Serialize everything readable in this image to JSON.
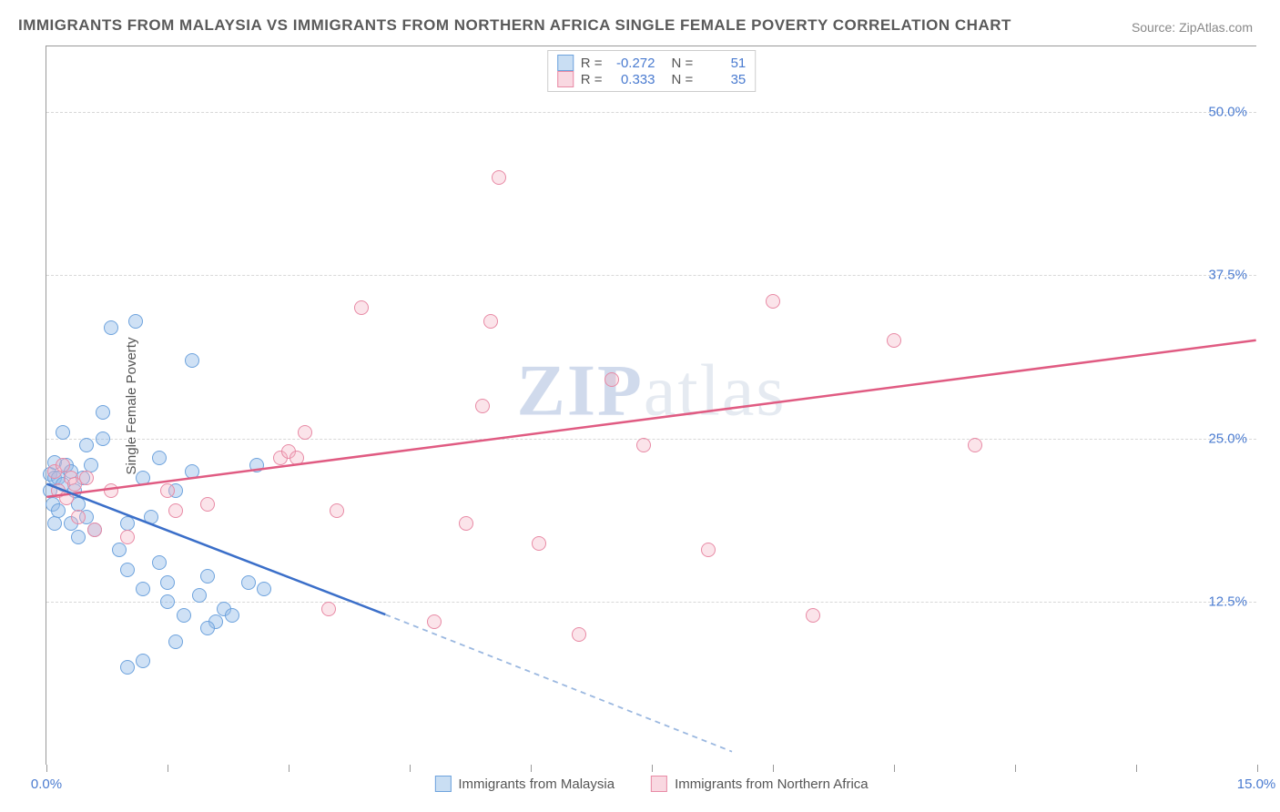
{
  "title": "IMMIGRANTS FROM MALAYSIA VS IMMIGRANTS FROM NORTHERN AFRICA SINGLE FEMALE POVERTY CORRELATION CHART",
  "source_label": "Source: ",
  "source_name": "ZipAtlas.com",
  "ylabel": "Single Female Poverty",
  "watermark_bold": "ZIP",
  "watermark_rest": "atlas",
  "chart": {
    "type": "scatter",
    "xlim": [
      0,
      15
    ],
    "ylim": [
      0,
      55
    ],
    "x_tick_positions": [
      0,
      1.5,
      3.0,
      4.5,
      6.0,
      7.5,
      9.0,
      10.5,
      12.0,
      13.5,
      15.0
    ],
    "x_tick_labels_shown": {
      "0": "0.0%",
      "15": "15.0%"
    },
    "y_gridlines": [
      12.5,
      25.0,
      37.5,
      50.0
    ],
    "y_tick_labels": [
      "12.5%",
      "25.0%",
      "37.5%",
      "50.0%"
    ],
    "background_color": "#ffffff",
    "grid_color": "#d8d8d8",
    "axis_color": "#999999",
    "tick_label_color": "#4a7bd0",
    "title_color": "#5a5a5a",
    "title_fontsize": 17,
    "label_fontsize": 15,
    "point_radius": 8,
    "series": [
      {
        "name": "Immigrants from Malaysia",
        "color_fill": "rgba(148,189,232,0.45)",
        "color_stroke": "#6ea3dd",
        "R": "-0.272",
        "N": "51",
        "trend": {
          "x1": 0,
          "y1": 21.5,
          "x2": 4.2,
          "y2": 11.5,
          "extend_dash_to_x": 8.5,
          "extend_dash_to_y": 1.0,
          "solid_color": "#3b6fc9",
          "dash_color": "#9bb8e0",
          "width": 2.5
        },
        "points": [
          [
            0.05,
            22.3
          ],
          [
            0.05,
            21.0
          ],
          [
            0.08,
            20.0
          ],
          [
            0.1,
            23.2
          ],
          [
            0.1,
            22.0
          ],
          [
            0.1,
            18.5
          ],
          [
            0.15,
            22.0
          ],
          [
            0.15,
            19.5
          ],
          [
            0.2,
            25.5
          ],
          [
            0.2,
            21.5
          ],
          [
            0.25,
            23.0
          ],
          [
            0.3,
            18.5
          ],
          [
            0.3,
            22.5
          ],
          [
            0.35,
            21.0
          ],
          [
            0.4,
            17.5
          ],
          [
            0.45,
            22.0
          ],
          [
            0.5,
            24.5
          ],
          [
            0.5,
            19.0
          ],
          [
            0.55,
            23.0
          ],
          [
            0.6,
            18.0
          ],
          [
            0.7,
            25.0
          ],
          [
            0.8,
            33.5
          ],
          [
            0.9,
            16.5
          ],
          [
            1.0,
            15.0
          ],
          [
            1.0,
            18.5
          ],
          [
            1.1,
            34.0
          ],
          [
            1.2,
            13.5
          ],
          [
            1.2,
            22.0
          ],
          [
            1.3,
            19.0
          ],
          [
            1.4,
            15.5
          ],
          [
            1.4,
            23.5
          ],
          [
            1.5,
            14.0
          ],
          [
            1.5,
            12.5
          ],
          [
            1.6,
            21.0
          ],
          [
            1.7,
            11.5
          ],
          [
            1.8,
            22.5
          ],
          [
            1.8,
            31.0
          ],
          [
            1.9,
            13.0
          ],
          [
            2.0,
            14.5
          ],
          [
            2.1,
            11.0
          ],
          [
            2.2,
            12.0
          ],
          [
            2.3,
            11.5
          ],
          [
            2.5,
            14.0
          ],
          [
            2.6,
            23.0
          ],
          [
            2.7,
            13.5
          ],
          [
            1.2,
            8.0
          ],
          [
            1.0,
            7.5
          ],
          [
            1.6,
            9.5
          ],
          [
            2.0,
            10.5
          ],
          [
            0.7,
            27.0
          ],
          [
            0.4,
            20.0
          ]
        ]
      },
      {
        "name": "Immigrants from Northern Africa",
        "color_fill": "rgba(243,178,195,0.35)",
        "color_stroke": "#e88aa5",
        "R": "0.333",
        "N": "35",
        "trend": {
          "x1": 0,
          "y1": 20.5,
          "x2": 15,
          "y2": 32.5,
          "solid_color": "#e05b82",
          "width": 2.5
        },
        "points": [
          [
            0.1,
            22.5
          ],
          [
            0.15,
            21.0
          ],
          [
            0.2,
            23.0
          ],
          [
            0.25,
            20.5
          ],
          [
            0.3,
            22.0
          ],
          [
            0.35,
            21.5
          ],
          [
            0.4,
            19.0
          ],
          [
            0.5,
            22.0
          ],
          [
            0.6,
            18.0
          ],
          [
            0.8,
            21.0
          ],
          [
            1.0,
            17.5
          ],
          [
            1.5,
            21.0
          ],
          [
            1.6,
            19.5
          ],
          [
            2.0,
            20.0
          ],
          [
            2.9,
            23.5
          ],
          [
            3.0,
            24.0
          ],
          [
            3.1,
            23.5
          ],
          [
            3.2,
            25.5
          ],
          [
            3.5,
            12.0
          ],
          [
            3.6,
            19.5
          ],
          [
            3.9,
            35.0
          ],
          [
            4.8,
            11.0
          ],
          [
            5.2,
            18.5
          ],
          [
            5.4,
            27.5
          ],
          [
            5.5,
            34.0
          ],
          [
            5.6,
            45.0
          ],
          [
            6.1,
            17.0
          ],
          [
            6.6,
            10.0
          ],
          [
            7.0,
            29.5
          ],
          [
            7.4,
            24.5
          ],
          [
            8.2,
            16.5
          ],
          [
            9.0,
            35.5
          ],
          [
            9.5,
            11.5
          ],
          [
            10.5,
            32.5
          ],
          [
            11.5,
            24.5
          ]
        ]
      }
    ]
  },
  "legend_top": {
    "r_label": "R =",
    "n_label": "N ="
  }
}
